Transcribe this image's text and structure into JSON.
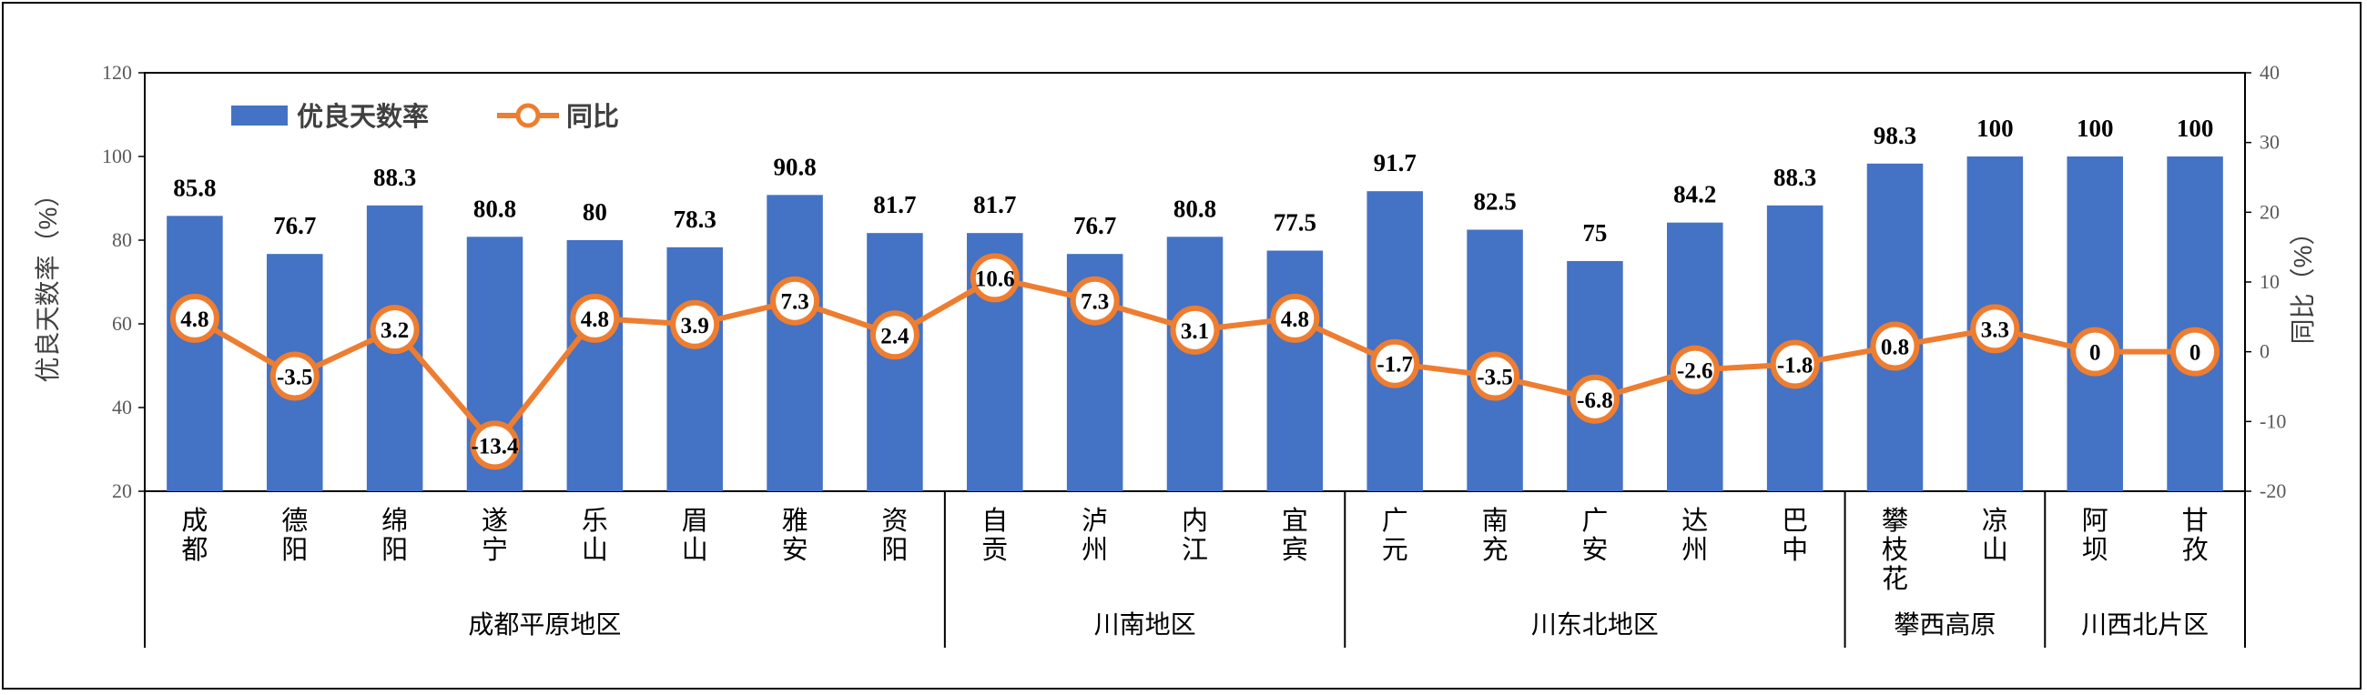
{
  "chart_data": {
    "type": "bar",
    "categories": [
      "成都",
      "德阳",
      "绵阳",
      "遂宁",
      "乐山",
      "眉山",
      "雅安",
      "资阳",
      "自贡",
      "泸州",
      "内江",
      "宜宾",
      "广元",
      "南充",
      "广安",
      "达州",
      "巴中",
      "攀枝花",
      "凉山",
      "阿坝",
      "甘孜"
    ],
    "category_lines": [
      [
        "成",
        "都"
      ],
      [
        "德",
        "阳"
      ],
      [
        "绵",
        "阳"
      ],
      [
        "遂",
        "宁"
      ],
      [
        "乐",
        "山"
      ],
      [
        "眉",
        "山"
      ],
      [
        "雅",
        "安"
      ],
      [
        "资",
        "阳"
      ],
      [
        "自",
        "贡"
      ],
      [
        "泸",
        "州"
      ],
      [
        "内",
        "江"
      ],
      [
        "宜",
        "宾"
      ],
      [
        "广",
        "元"
      ],
      [
        "南",
        "充"
      ],
      [
        "广",
        "安"
      ],
      [
        "达",
        "州"
      ],
      [
        "巴",
        "中"
      ],
      [
        "攀",
        "枝",
        "花"
      ],
      [
        "凉",
        "山"
      ],
      [
        "阿",
        "坝"
      ],
      [
        "甘",
        "孜"
      ]
    ],
    "groups": [
      {
        "name": "成都平原地区",
        "count": 8
      },
      {
        "name": "川南地区",
        "count": 4
      },
      {
        "name": "川东北地区",
        "count": 5
      },
      {
        "name": "攀西高原",
        "count": 2
      },
      {
        "name": "川西北片区",
        "count": 2
      }
    ],
    "series": [
      {
        "name": "优良天数率",
        "type": "bar",
        "axis": "left",
        "color": "#4472C4",
        "values": [
          85.8,
          76.7,
          88.3,
          80.8,
          80,
          78.3,
          90.8,
          81.7,
          81.7,
          76.7,
          80.8,
          77.5,
          91.7,
          82.5,
          75,
          84.2,
          88.3,
          98.3,
          100,
          100,
          100
        ]
      },
      {
        "name": "同比",
        "type": "line",
        "axis": "right",
        "color": "#ED7D31",
        "values": [
          4.8,
          -3.5,
          3.2,
          -13.4,
          4.8,
          3.9,
          7.3,
          2.4,
          10.6,
          7.3,
          3.1,
          4.8,
          -1.7,
          -3.5,
          -6.8,
          -2.6,
          -1.8,
          0.8,
          3.3,
          0,
          0
        ]
      }
    ],
    "ylabel": "优良天数率（%）",
    "y2label": "同比（%）",
    "ylim": [
      20,
      120
    ],
    "y2lim": [
      -20,
      40
    ],
    "yticks": [
      20,
      40,
      60,
      80,
      100,
      120
    ],
    "y2ticks": [
      -20,
      -10,
      0,
      10,
      20,
      30,
      40
    ],
    "grid": false,
    "legend_position": "top-left"
  }
}
